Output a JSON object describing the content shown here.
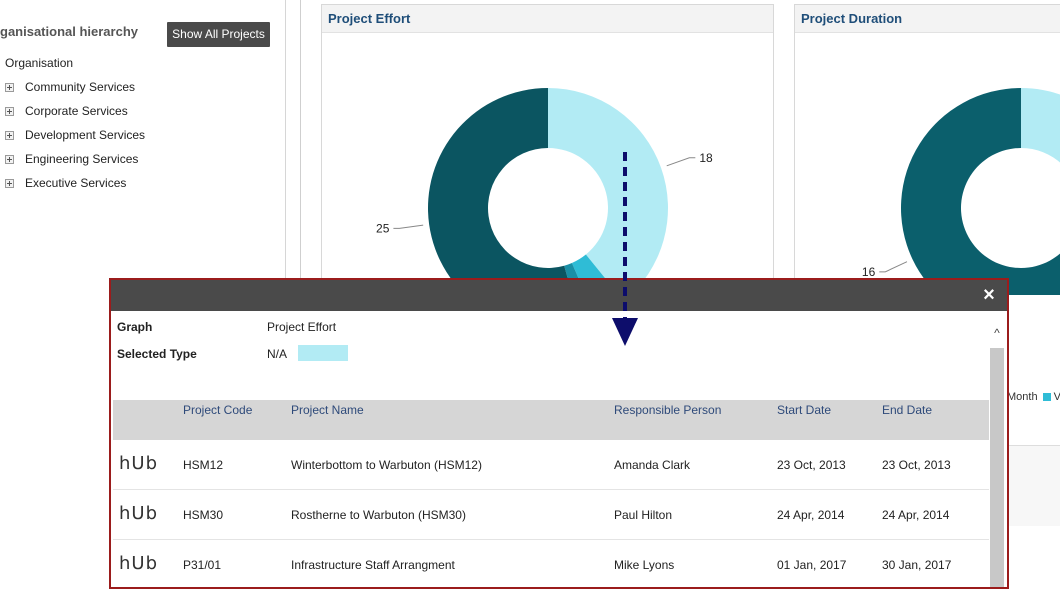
{
  "sidebar": {
    "title": "ganisational hierarchy",
    "show_all_button": "Show All Projects",
    "root": "Organisation",
    "items": [
      {
        "label": "Community Services"
      },
      {
        "label": "Corporate Services"
      },
      {
        "label": "Development Services"
      },
      {
        "label": "Engineering Services"
      },
      {
        "label": "Executive Services"
      }
    ]
  },
  "panels": {
    "effort_title": "Project Effort",
    "duration_title": "Project Duration",
    "legend_fragment": "Month",
    "legend_fragment_2": "V"
  },
  "chart_data": [
    {
      "type": "pie",
      "title": "Project Effort",
      "donut": true,
      "slices": [
        {
          "value": 18,
          "color": "#b2ebf4",
          "label": "18"
        },
        {
          "value": 2,
          "color": "#2fbcd6",
          "label": ""
        },
        {
          "value": 1,
          "color": "#1a8fa6",
          "label": ""
        },
        {
          "value": 25,
          "color": "#0b5561",
          "label": "25"
        }
      ]
    },
    {
      "type": "pie",
      "title": "Project Duration",
      "donut": true,
      "slices": [
        {
          "value": 3,
          "color": "#b2ebf4",
          "label": ""
        },
        {
          "value": 6,
          "color": "#168693",
          "label": ""
        },
        {
          "value": 16,
          "color": "#0b5f6c",
          "label": "16"
        }
      ]
    }
  ],
  "modal": {
    "close_label": "×",
    "graph_key": "Graph",
    "graph_value": "Project Effort",
    "type_key": "Selected Type",
    "type_value": "N/A",
    "type_color": "#b2ebf4",
    "columns": [
      "Project Code",
      "Project Name",
      "Responsible Person",
      "Start Date",
      "End Date"
    ],
    "rows": [
      {
        "logo": "hUb",
        "code": "HSM12",
        "name": "Winterbottom to Warbuton (HSM12)",
        "person": "Amanda Clark",
        "start": "23 Oct, 2013",
        "end": "23 Oct, 2013"
      },
      {
        "logo": "hUb",
        "code": "HSM30",
        "name": "Rostherne to Warbuton (HSM30)",
        "person": "Paul Hilton",
        "start": "24 Apr, 2014",
        "end": "24 Apr, 2014"
      },
      {
        "logo": "hUb",
        "code": "P31/01",
        "name": "Infrastructure Staff Arrangment",
        "person": "Mike Lyons",
        "start": "01 Jan, 2017",
        "end": "30 Jan, 2017"
      }
    ]
  }
}
